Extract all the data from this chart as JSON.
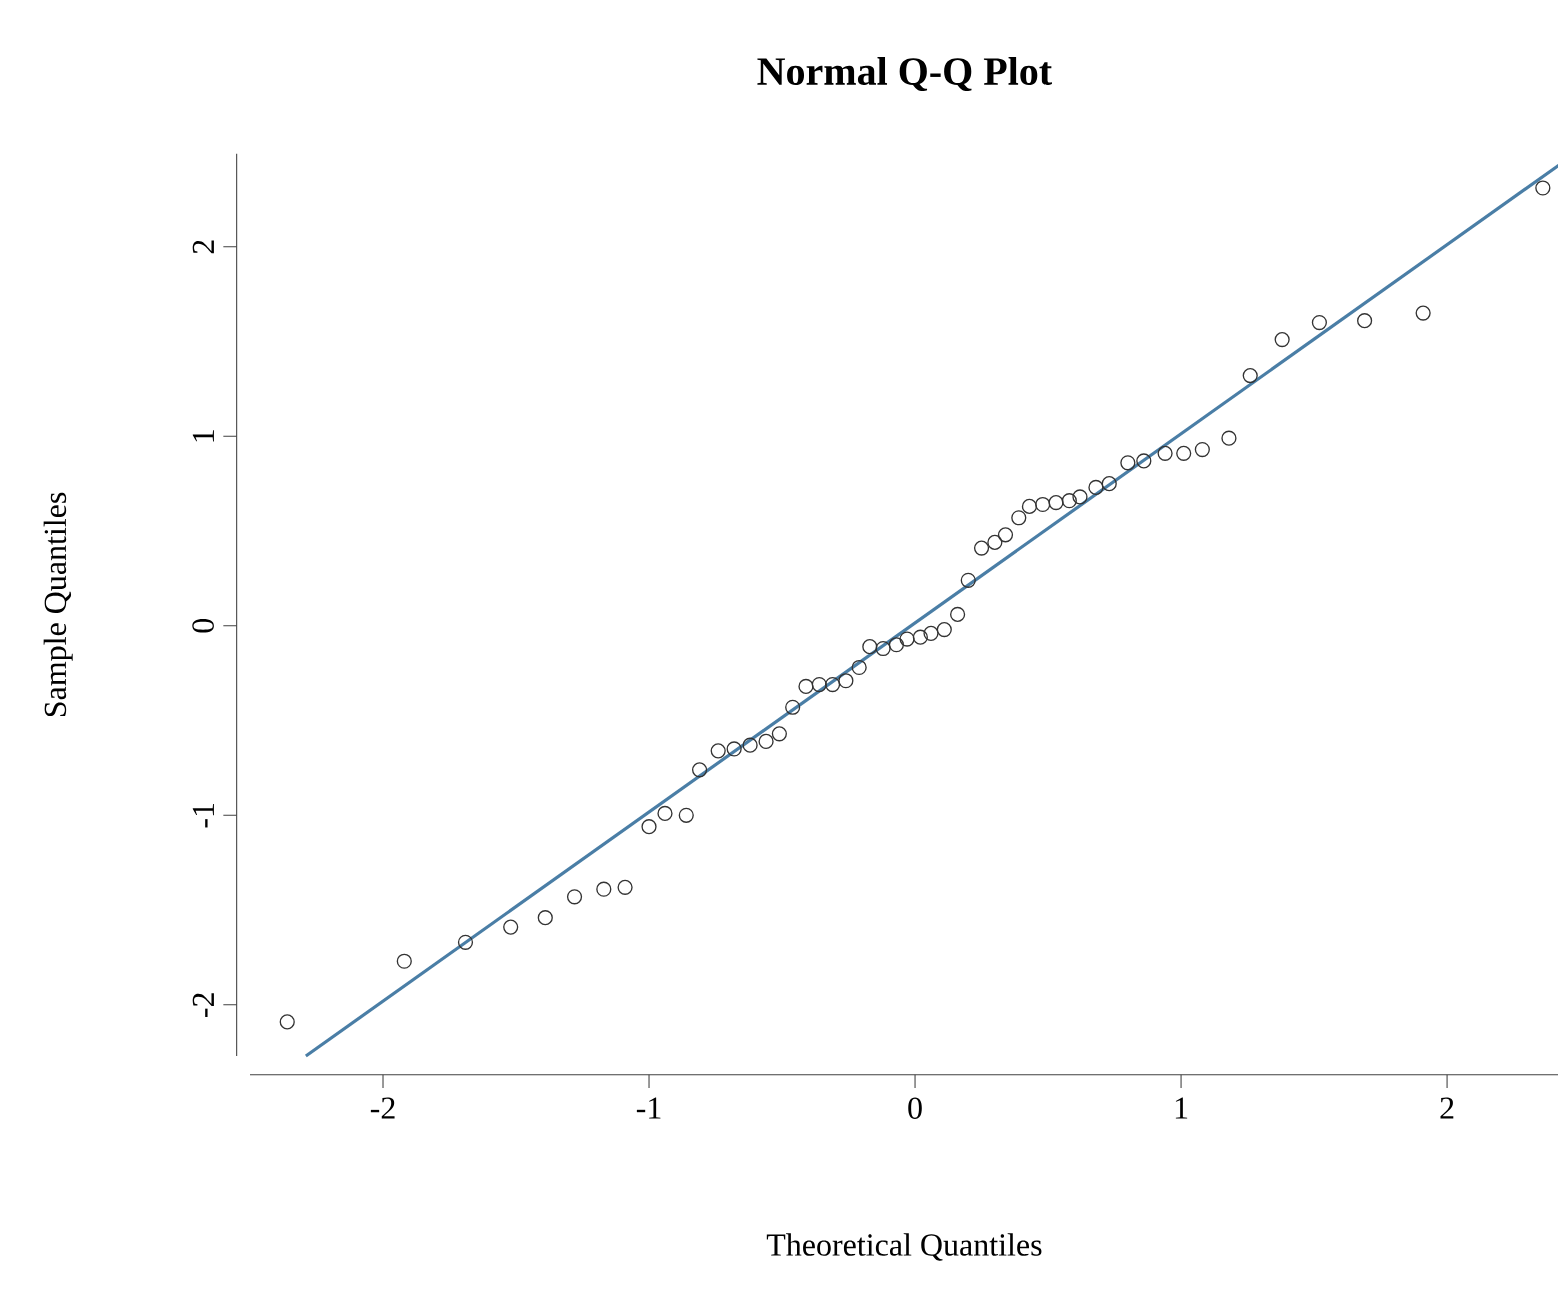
{
  "chart_data": {
    "type": "scatter",
    "title": "Normal Q-Q Plot",
    "xlabel": "Theoretical Quantiles",
    "ylabel": "Sample Quantiles",
    "xlim": [
      -2.5,
      2.42
    ],
    "ylim": [
      -2.27,
      2.49
    ],
    "xticks": [
      -2,
      -1,
      0,
      1,
      2
    ],
    "yticks": [
      -2,
      -1,
      0,
      1,
      2
    ],
    "grid": false,
    "marker": "circle",
    "series": [
      {
        "color": "#333333",
        "x": [
          -2.36,
          -1.92,
          -1.69,
          -1.52,
          -1.39,
          -1.28,
          -1.17,
          -1.09,
          -1.0,
          -0.94,
          -0.86,
          -0.81,
          -0.74,
          -0.68,
          -0.62,
          -0.56,
          -0.51,
          -0.46,
          -0.41,
          -0.36,
          -0.31,
          -0.26,
          -0.21,
          -0.17,
          -0.12,
          -0.07,
          -0.03,
          0.02,
          0.06,
          0.11,
          0.16,
          0.2,
          0.25,
          0.3,
          0.34,
          0.39,
          0.43,
          0.48,
          0.53,
          0.58,
          0.62,
          0.68,
          0.73,
          0.8,
          0.86,
          0.94,
          1.01,
          1.08,
          1.18,
          1.26,
          1.38,
          1.52,
          1.69,
          1.91,
          2.36
        ],
        "values": [
          -2.09,
          -1.77,
          -1.67,
          -1.59,
          -1.54,
          -1.43,
          -1.39,
          -1.38,
          -1.06,
          -0.99,
          -1.0,
          -0.76,
          -0.66,
          -0.65,
          -0.63,
          -0.61,
          -0.57,
          -0.43,
          -0.32,
          -0.31,
          -0.31,
          -0.29,
          -0.22,
          -0.11,
          -0.12,
          -0.1,
          -0.07,
          -0.06,
          -0.04,
          -0.02,
          0.06,
          0.24,
          0.41,
          0.44,
          0.48,
          0.57,
          0.63,
          0.64,
          0.65,
          0.66,
          0.68,
          0.73,
          0.75,
          0.86,
          0.87,
          0.91,
          0.91,
          0.93,
          0.99,
          1.32,
          1.51,
          1.6,
          1.61,
          1.65,
          2.31
        ]
      },
      {
        "type": "line",
        "color": "#4a7ea6",
        "marker": "none",
        "line_style": "solid",
        "x": [
          -2.29,
          2.42
        ],
        "values": [
          -2.27,
          2.43
        ]
      }
    ]
  }
}
